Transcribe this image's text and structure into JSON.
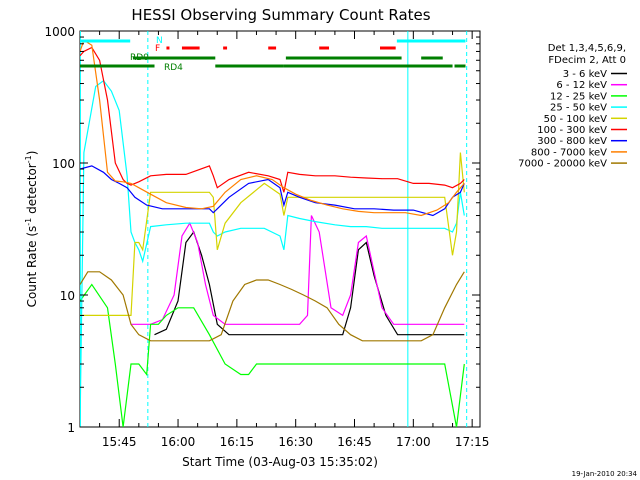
{
  "chart_data": {
    "type": "line",
    "title": "HESSI Observing Summary Count Rates",
    "xlabel": "Start Time (03-Aug-03 15:35:02)",
    "ylabel_main": "Count Rate (s",
    "ylabel_sup1": "-1",
    "ylabel_mid": " detector",
    "ylabel_sup2": "-1",
    "ylabel_end": ")",
    "yscale": "log",
    "ylim": [
      1,
      1000
    ],
    "xlim_minutes": [
      15.583,
      17.283
    ],
    "xtick_labels": [
      "15:45",
      "16:00",
      "16:15",
      "16:30",
      "16:45",
      "17:00",
      "17:15"
    ],
    "xtick_minutes": [
      945,
      960,
      975,
      990,
      1005,
      1020,
      1035
    ],
    "ytick_labels": [
      "1",
      "10",
      "100",
      "1000"
    ],
    "ytick_values": [
      1,
      10,
      100,
      1000
    ],
    "legend_header": [
      "Det 1,3,4,5,6,9,",
      "FDecim 2, Att 0"
    ],
    "timestamp": "19-Jan-2010 20:34",
    "flags": {
      "N_label": "N",
      "F_label": "F",
      "RD0_label": "RD0",
      "RD4_label": "RD4",
      "N_color": "#00ffff",
      "F_color": "#ff0000",
      "RD_color": "#007f00",
      "N_intervals": [
        [
          935.0,
          947.8
        ],
        [
          1015.8,
          1033.3
        ]
      ],
      "F_intervals": [
        [
          961.0,
          965.5
        ],
        [
          971.5,
          972.5
        ],
        [
          983.0,
          985.0
        ],
        [
          996.0,
          998.5
        ],
        [
          1011.5,
          1015.5
        ]
      ],
      "F_dot": 957.3,
      "RD0_intervals": [
        [
          948.5,
          969.5
        ],
        [
          987.5,
          1017.0
        ],
        [
          1022.0,
          1027.5
        ]
      ],
      "RD4_intervals": [
        [
          935.0,
          954.0
        ],
        [
          969.5,
          987.0
        ],
        [
          987.0,
          1030.0
        ],
        [
          1030.5,
          1033.3
        ]
      ]
    },
    "night_markers_minutes": [
      935.1,
      952.3,
      1018.6,
      1033.6
    ],
    "legend_placement": "right",
    "series": [
      {
        "name": "3 - 6 keV",
        "color": "#000000",
        "x": [
          935,
          944,
          950,
          954,
          957,
          960,
          962,
          964,
          966,
          968,
          970,
          973,
          976,
          980,
          984,
          987,
          990,
          993,
          996,
          999,
          1002,
          1004,
          1006,
          1008,
          1010,
          1013,
          1016,
          1020,
          1025,
          1028,
          1031,
          1033
        ],
        "y": [
          null,
          null,
          null,
          5,
          5.5,
          9,
          25,
          30,
          20,
          12,
          6,
          5,
          5,
          5,
          5,
          5,
          5,
          5,
          5,
          5,
          5,
          8,
          22,
          25,
          14,
          7,
          5,
          5,
          5,
          5,
          5,
          5
        ]
      },
      {
        "name": "6 - 12 keV",
        "color": "#ff00ff",
        "x": [
          935,
          946,
          948,
          950,
          953,
          956,
          959,
          961,
          963,
          965,
          967,
          969,
          972,
          975,
          978,
          982,
          985,
          988,
          991,
          993,
          994,
          996,
          999,
          1002,
          1004,
          1006,
          1008,
          1010,
          1012,
          1015,
          1019,
          1023,
          1027,
          1030,
          1033
        ],
        "y": [
          null,
          null,
          6,
          6,
          6,
          6.5,
          10,
          28,
          35,
          25,
          12,
          7,
          6,
          6,
          6,
          6,
          6,
          6,
          6,
          7,
          40,
          30,
          8,
          7,
          10,
          25,
          28,
          15,
          8,
          6,
          6,
          6,
          6,
          6,
          6
        ]
      },
      {
        "name": "12 - 25 keV",
        "color": "#00ff00",
        "x": [
          935,
          938,
          942,
          944,
          946,
          948,
          950,
          952,
          953,
          955,
          957,
          960,
          964,
          968,
          972,
          976,
          978,
          980,
          984,
          988,
          992,
          996,
          1000,
          1004,
          1008,
          1012,
          1016,
          1020,
          1024,
          1028,
          1031,
          1033
        ],
        "y": [
          9,
          12,
          8,
          3,
          1,
          3,
          3,
          2.5,
          6,
          6,
          7,
          8,
          8,
          5,
          3,
          2.5,
          2.5,
          3,
          3,
          3,
          3,
          3,
          3,
          3,
          3,
          3,
          3,
          3,
          3,
          3,
          1,
          3
        ]
      },
      {
        "name": "25 - 50 keV",
        "color": "#00ffff",
        "x": [
          935,
          936,
          939,
          941,
          943,
          945,
          947,
          948,
          949,
          950,
          951,
          953,
          957,
          962,
          968,
          969,
          970,
          972,
          976,
          982,
          986,
          987,
          988,
          991,
          995,
          1000,
          1004,
          1008,
          1012,
          1016,
          1020,
          1024,
          1028,
          1030,
          1031,
          1032,
          1033
        ],
        "y": [
          1,
          120,
          380,
          420,
          350,
          250,
          80,
          30,
          25,
          22,
          18,
          33,
          34,
          35,
          35,
          30,
          28,
          30,
          32,
          32,
          28,
          22,
          40,
          38,
          36,
          34,
          33,
          33,
          32,
          32,
          32,
          32,
          32,
          30,
          35,
          60,
          40
        ]
      },
      {
        "name": "50 - 100 keV",
        "color": "#d4d400",
        "x": [
          935,
          937,
          940,
          942,
          944,
          946,
          948,
          949,
          950,
          951,
          953,
          957,
          962,
          968,
          969,
          970,
          972,
          976,
          982,
          986,
          987,
          988,
          991,
          995,
          1000,
          1004,
          1008,
          1012,
          1016,
          1020,
          1024,
          1028,
          1030,
          1031,
          1032,
          1033
        ],
        "y": [
          7,
          7,
          7,
          7,
          7,
          7,
          7,
          25,
          25,
          22,
          60,
          60,
          60,
          60,
          55,
          22,
          35,
          50,
          70,
          58,
          40,
          55,
          55,
          55,
          55,
          55,
          55,
          55,
          55,
          55,
          55,
          55,
          20,
          30,
          120,
          60
        ]
      },
      {
        "name": "100 - 300 keV",
        "color": "#ff0000",
        "x": [
          935,
          936,
          938,
          940,
          942,
          944,
          946,
          947,
          948,
          949,
          950,
          953,
          957,
          962,
          968,
          969,
          970,
          973,
          978,
          983,
          986,
          987,
          988,
          991,
          995,
          1000,
          1004,
          1008,
          1012,
          1016,
          1020,
          1024,
          1028,
          1030,
          1032,
          1033
        ],
        "y": [
          650,
          700,
          750,
          600,
          300,
          100,
          75,
          70,
          68,
          70,
          72,
          80,
          82,
          82,
          95,
          80,
          65,
          75,
          85,
          80,
          75,
          60,
          85,
          82,
          80,
          80,
          78,
          77,
          76,
          76,
          70,
          70,
          68,
          65,
          70,
          75
        ]
      },
      {
        "name": "300 - 800 keV",
        "color": "#0000ff",
        "x": [
          935,
          938,
          941,
          943,
          945,
          947,
          949,
          952,
          956,
          960,
          964,
          968,
          969,
          970,
          973,
          978,
          983,
          986,
          987,
          988,
          991,
          995,
          1000,
          1005,
          1010,
          1015,
          1020,
          1025,
          1028,
          1030,
          1032,
          1033
        ],
        "y": [
          90,
          95,
          85,
          75,
          70,
          65,
          55,
          48,
          45,
          45,
          45,
          45,
          42,
          45,
          55,
          70,
          75,
          65,
          48,
          60,
          55,
          50,
          48,
          45,
          45,
          44,
          44,
          40,
          45,
          55,
          60,
          70
        ]
      },
      {
        "name": "800 - 7000 keV",
        "color": "#ff8000",
        "x": [
          935,
          936,
          938,
          940,
          942,
          944,
          946,
          948,
          950,
          953,
          957,
          962,
          966,
          969,
          972,
          976,
          980,
          984,
          987,
          990,
          994,
          998,
          1002,
          1006,
          1010,
          1014,
          1018,
          1022,
          1026,
          1029,
          1031,
          1033
        ],
        "y": [
          700,
          850,
          780,
          300,
          85,
          73,
          72,
          70,
          65,
          58,
          50,
          46,
          45,
          47,
          60,
          75,
          80,
          75,
          65,
          58,
          52,
          48,
          45,
          43,
          42,
          42,
          42,
          40,
          44,
          50,
          60,
          70
        ]
      },
      {
        "name": "7000 - 20000 keV",
        "color": "#a07800",
        "x": [
          935,
          937,
          940,
          943,
          946,
          948,
          950,
          953,
          956,
          959,
          962,
          965,
          968,
          971,
          974,
          977,
          980,
          983,
          986,
          989,
          992,
          995,
          998,
          1001,
          1004,
          1007,
          1010,
          1013,
          1016,
          1019,
          1022,
          1025,
          1028,
          1031,
          1033
        ],
        "y": [
          12,
          15,
          15,
          13,
          10,
          6,
          5,
          4.5,
          4.5,
          4.5,
          4.5,
          4.5,
          4.5,
          5,
          9,
          12,
          13,
          13,
          12,
          11,
          10,
          9,
          8,
          6,
          5,
          4.5,
          4.5,
          4.5,
          4.5,
          4.5,
          4.5,
          5,
          8,
          12,
          15
        ]
      }
    ]
  }
}
